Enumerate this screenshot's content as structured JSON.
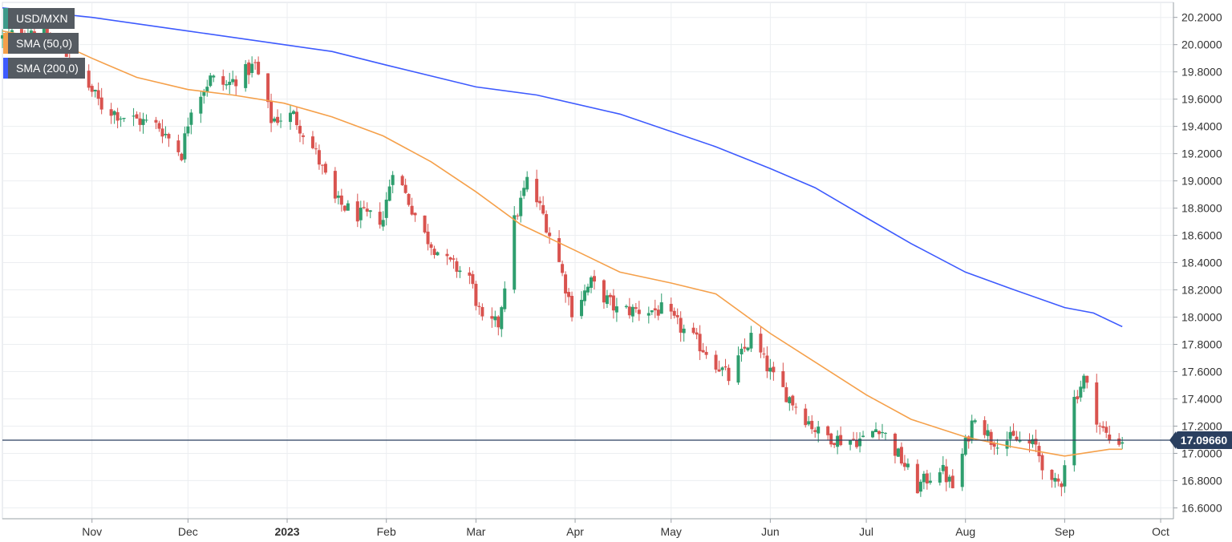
{
  "chart_data": {
    "type": "candlestick",
    "title": "USD/MXN",
    "symbol": "USD/MXN",
    "last_price_label": "17.09660",
    "last_price": 17.0966,
    "y_range": [
      16.52,
      20.31
    ],
    "y_ticks": [
      "20.2000",
      "20.0000",
      "19.8000",
      "19.6000",
      "19.4000",
      "19.2000",
      "19.0000",
      "18.8000",
      "18.6000",
      "18.4000",
      "18.2000",
      "18.0000",
      "17.8000",
      "17.6000",
      "17.4000",
      "17.2000",
      "17.0000",
      "16.8000",
      "16.6000"
    ],
    "x_ticks": [
      {
        "label": "Nov",
        "date": "2022-11-01",
        "bold": false
      },
      {
        "label": "Dec",
        "date": "2022-12-01",
        "bold": false
      },
      {
        "label": "2023",
        "date": "2023-01-01",
        "bold": true
      },
      {
        "label": "Feb",
        "date": "2023-02-01",
        "bold": false
      },
      {
        "label": "Mar",
        "date": "2023-03-01",
        "bold": false
      },
      {
        "label": "Apr",
        "date": "2023-04-01",
        "bold": false
      },
      {
        "label": "May",
        "date": "2023-05-01",
        "bold": false
      },
      {
        "label": "Jun",
        "date": "2023-06-01",
        "bold": false
      },
      {
        "label": "Jul",
        "date": "2023-07-01",
        "bold": false
      },
      {
        "label": "Aug",
        "date": "2023-08-01",
        "bold": false
      },
      {
        "label": "Sep",
        "date": "2023-09-01",
        "bold": false
      },
      {
        "label": "Oct",
        "date": "2023-10-01",
        "bold": false
      }
    ],
    "x_range": [
      "2022-10-04",
      "2023-10-05"
    ],
    "grid": true,
    "legend_position": "top-left",
    "series": [
      {
        "name": "SMA (50,0)",
        "color": "#f5a04a",
        "type": "line",
        "points": [
          [
            "2022-10-04",
            20.1
          ],
          [
            "2022-10-20",
            20.03
          ],
          [
            "2022-11-01",
            19.9
          ],
          [
            "2022-11-15",
            19.76
          ],
          [
            "2022-12-01",
            19.67
          ],
          [
            "2022-12-15",
            19.63
          ],
          [
            "2022-12-31",
            19.57
          ],
          [
            "2023-01-15",
            19.47
          ],
          [
            "2023-01-31",
            19.33
          ],
          [
            "2023-02-15",
            19.14
          ],
          [
            "2023-03-01",
            18.92
          ],
          [
            "2023-03-15",
            18.68
          ],
          [
            "2023-04-01",
            18.49
          ],
          [
            "2023-04-15",
            18.33
          ],
          [
            "2023-05-01",
            18.25
          ],
          [
            "2023-05-15",
            18.17
          ],
          [
            "2023-06-01",
            17.88
          ],
          [
            "2023-06-15",
            17.67
          ],
          [
            "2023-07-01",
            17.43
          ],
          [
            "2023-07-15",
            17.25
          ],
          [
            "2023-08-01",
            17.12
          ],
          [
            "2023-08-15",
            17.05
          ],
          [
            "2023-09-01",
            16.98
          ],
          [
            "2023-09-15",
            17.03
          ],
          [
            "2023-09-19",
            17.03
          ]
        ]
      },
      {
        "name": "SMA (200,0)",
        "color": "#3d5afe",
        "type": "line",
        "points": [
          [
            "2022-10-04",
            20.27
          ],
          [
            "2022-11-01",
            20.2
          ],
          [
            "2022-12-01",
            20.1
          ],
          [
            "2022-12-31",
            20.0
          ],
          [
            "2023-01-15",
            19.95
          ],
          [
            "2023-02-01",
            19.85
          ],
          [
            "2023-03-01",
            19.69
          ],
          [
            "2023-03-20",
            19.63
          ],
          [
            "2023-04-15",
            19.49
          ],
          [
            "2023-05-15",
            19.25
          ],
          [
            "2023-06-01",
            19.09
          ],
          [
            "2023-06-15",
            18.95
          ],
          [
            "2023-07-01",
            18.73
          ],
          [
            "2023-07-15",
            18.54
          ],
          [
            "2023-08-01",
            18.33
          ],
          [
            "2023-08-15",
            18.21
          ],
          [
            "2023-09-01",
            18.07
          ],
          [
            "2023-09-10",
            18.03
          ],
          [
            "2023-09-19",
            17.93
          ]
        ]
      }
    ],
    "ohlc_key_points": [
      [
        "2022-10-04",
        20.05
      ],
      [
        "2022-10-14",
        20.12
      ],
      [
        "2022-10-25",
        19.9
      ],
      [
        "2022-11-04",
        19.55
      ],
      [
        "2022-11-10",
        19.48
      ],
      [
        "2022-11-22",
        19.4
      ],
      [
        "2022-11-29",
        19.2
      ],
      [
        "2022-12-02",
        19.55
      ],
      [
        "2022-12-08",
        19.75
      ],
      [
        "2022-12-13",
        19.7
      ],
      [
        "2022-12-22",
        19.85
      ],
      [
        "2022-12-27",
        19.45
      ],
      [
        "2023-01-03",
        19.48
      ],
      [
        "2023-01-10",
        19.2
      ],
      [
        "2023-01-16",
        18.85
      ],
      [
        "2023-01-23",
        18.75
      ],
      [
        "2023-01-31",
        18.72
      ],
      [
        "2023-02-03",
        19.1
      ],
      [
        "2023-02-06",
        18.95
      ],
      [
        "2023-02-13",
        18.6
      ],
      [
        "2023-02-20",
        18.4
      ],
      [
        "2023-02-27",
        18.3
      ],
      [
        "2023-03-03",
        17.95
      ],
      [
        "2023-03-08",
        17.95
      ],
      [
        "2023-03-13",
        18.7
      ],
      [
        "2023-03-17",
        19.0
      ],
      [
        "2023-03-22",
        18.75
      ],
      [
        "2023-03-27",
        18.4
      ],
      [
        "2023-03-31",
        18.05
      ],
      [
        "2023-04-06",
        18.25
      ],
      [
        "2023-04-14",
        18.05
      ],
      [
        "2023-04-21",
        18.05
      ],
      [
        "2023-04-28",
        18.05
      ],
      [
        "2023-05-05",
        17.9
      ],
      [
        "2023-05-12",
        17.75
      ],
      [
        "2023-05-19",
        17.55
      ],
      [
        "2023-05-26",
        17.85
      ],
      [
        "2023-06-02",
        17.55
      ],
      [
        "2023-06-09",
        17.35
      ],
      [
        "2023-06-16",
        17.15
      ],
      [
        "2023-06-23",
        17.1
      ],
      [
        "2023-06-30",
        17.1
      ],
      [
        "2023-07-05",
        17.2
      ],
      [
        "2023-07-12",
        16.95
      ],
      [
        "2023-07-17",
        16.75
      ],
      [
        "2023-07-24",
        16.9
      ],
      [
        "2023-07-28",
        16.75
      ],
      [
        "2023-08-04",
        17.3
      ],
      [
        "2023-08-09",
        17.1
      ],
      [
        "2023-08-16",
        17.1
      ],
      [
        "2023-08-23",
        17.05
      ],
      [
        "2023-08-28",
        16.75
      ],
      [
        "2023-08-31",
        16.8
      ],
      [
        "2023-09-04",
        17.4
      ],
      [
        "2023-09-07",
        17.55
      ],
      [
        "2023-09-12",
        17.2
      ],
      [
        "2023-09-15",
        17.1
      ],
      [
        "2023-09-19",
        17.0966
      ]
    ]
  }
}
